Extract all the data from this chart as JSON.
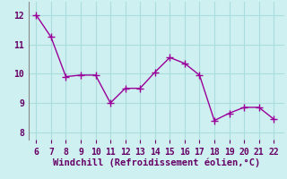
{
  "x": [
    6,
    7,
    8,
    9,
    10,
    11,
    12,
    13,
    14,
    15,
    16,
    17,
    18,
    19,
    20,
    21,
    22
  ],
  "y": [
    12.0,
    11.25,
    9.9,
    9.95,
    9.95,
    9.0,
    9.5,
    9.5,
    10.05,
    10.55,
    10.35,
    9.95,
    8.4,
    8.65,
    8.85,
    8.85,
    8.45
  ],
  "line_color": "#990099",
  "marker_color": "#990099",
  "bg_color": "#cff0f0",
  "grid_color": "#aadddd",
  "xlabel": "Windchill (Refroidissement éolien,°C)",
  "xlim": [
    5.5,
    22.7
  ],
  "ylim": [
    7.75,
    12.45
  ],
  "xticks": [
    6,
    7,
    8,
    9,
    10,
    11,
    12,
    13,
    14,
    15,
    16,
    17,
    18,
    19,
    20,
    21,
    22
  ],
  "yticks": [
    8,
    9,
    10,
    11,
    12
  ],
  "xlabel_color": "#660066",
  "tick_color": "#660066",
  "spine_color": "#888888",
  "xlabel_fontsize": 7.5,
  "tick_fontsize": 7,
  "marker_size": 3,
  "line_width": 1.0
}
